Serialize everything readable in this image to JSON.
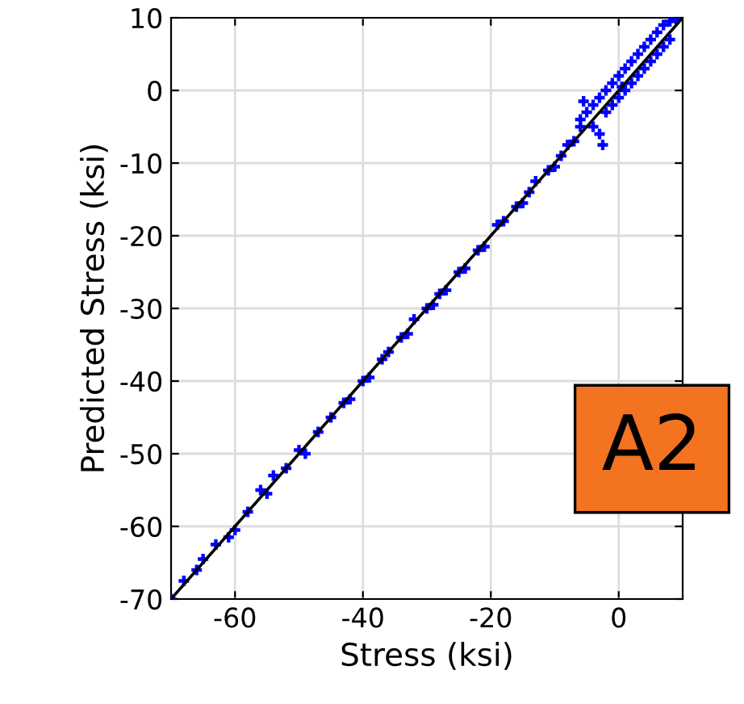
{
  "chart_data": {
    "type": "scatter",
    "xlabel": "Stress (ksi)",
    "ylabel": "Predicted Stress (ksi)",
    "xlim": [
      -70,
      10
    ],
    "ylim": [
      -70,
      10
    ],
    "xticks": [
      -60,
      -40,
      -20,
      0
    ],
    "yticks": [
      -70,
      -60,
      -50,
      -40,
      -30,
      -20,
      -10,
      0,
      10
    ],
    "grid": true,
    "marker": "cross",
    "annotations": [
      "A2"
    ],
    "series": [
      {
        "color": "#0000ff",
        "x": [
          -70,
          -68,
          -66,
          -65,
          -63,
          -61,
          -60,
          -58,
          -56,
          -55,
          -54,
          -52,
          -50,
          -49,
          -47,
          -45,
          -43,
          -42,
          -40,
          -39,
          -37,
          -36,
          -34,
          -33,
          -32,
          -30,
          -29,
          -28,
          -27,
          -25,
          -24,
          -22,
          -21,
          -19,
          -18,
          -16,
          -15,
          -14,
          -13,
          -11,
          -10,
          -9,
          -8,
          -7,
          -6,
          -6,
          -5.5,
          -5,
          -4,
          -4,
          -3,
          -3,
          -2.5,
          -2,
          -2,
          -1,
          -1,
          0,
          0,
          0.5,
          1,
          1,
          2,
          2,
          3,
          3,
          4,
          4,
          5,
          5,
          6,
          6,
          7,
          7,
          8,
          8,
          9
        ],
        "values": [
          -70,
          -67.5,
          -66,
          -64.5,
          -62.5,
          -61.5,
          -60.5,
          -58,
          -55,
          -55.5,
          -53,
          -52,
          -49.5,
          -50,
          -47,
          -45,
          -43,
          -42.5,
          -40,
          -39.5,
          -37,
          -36,
          -34,
          -33.5,
          -31.5,
          -30,
          -29.5,
          -28,
          -27.5,
          -25,
          -24.5,
          -22,
          -21.5,
          -18.5,
          -18,
          -16,
          -15.5,
          -14,
          -12.5,
          -11,
          -10.5,
          -9,
          -7.5,
          -7,
          -4,
          -5,
          -1.5,
          -3,
          -2,
          -5,
          -1,
          -6,
          -7.5,
          0,
          -3,
          1,
          -2,
          2,
          -1,
          0.5,
          3,
          0,
          4,
          1,
          5,
          2,
          6,
          3,
          7,
          4,
          8,
          5,
          9,
          6,
          9.5,
          7,
          9.8
        ]
      },
      {
        "type": "line",
        "marker": "none",
        "color": "#000000",
        "x": [
          -70,
          10
        ],
        "values": [
          -70,
          10
        ]
      }
    ]
  }
}
